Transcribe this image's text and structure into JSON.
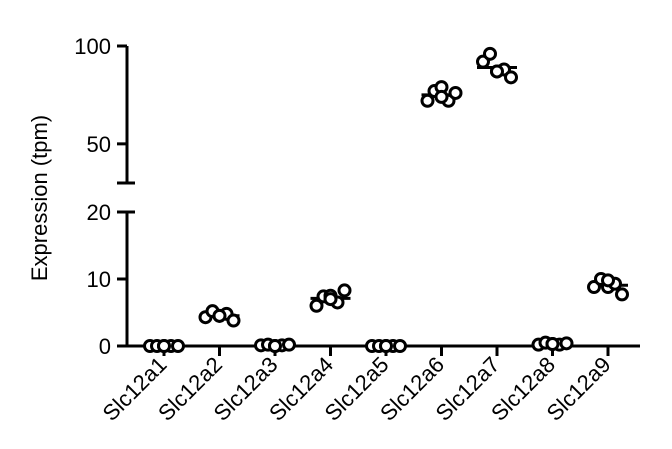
{
  "chart_data": {
    "type": "scatter",
    "style": "dot-plot with mean line, broken y-axis",
    "ylabel": "Expression (tpm)",
    "categories": [
      "Slc12a1",
      "Slc12a2",
      "Slc12a3",
      "Slc12a4",
      "Slc12a5",
      "Slc12a6",
      "Slc12a7",
      "Slc12a8",
      "Slc12a9"
    ],
    "y_segments": [
      {
        "range": [
          0,
          20
        ],
        "ticks": [
          "0",
          "10",
          "20"
        ]
      },
      {
        "range": [
          30,
          100
        ],
        "ticks": [
          "50",
          "100"
        ]
      }
    ],
    "series": [
      {
        "values": [
          [
            0,
            0,
            0,
            0,
            0,
            0
          ],
          [
            4.3,
            5.2,
            4.5,
            4.8,
            3.8,
            4.5
          ],
          [
            0.1,
            0.2,
            0,
            0.1,
            0.2,
            0
          ],
          [
            6,
            7.4,
            7.5,
            6.5,
            8.3,
            7
          ],
          [
            0,
            0,
            0,
            0,
            0,
            0
          ],
          [
            72,
            77,
            79,
            72,
            76,
            74
          ],
          [
            92,
            96,
            87,
            88,
            84,
            87
          ],
          [
            0.2,
            0.5,
            0.3,
            0.2,
            0.4,
            0.3
          ],
          [
            8.8,
            10,
            8.8,
            9.3,
            7.7,
            9.8
          ]
        ]
      }
    ],
    "colors": {
      "points_fill": "#ffffff",
      "points_stroke": "#000000"
    },
    "grid": false
  }
}
